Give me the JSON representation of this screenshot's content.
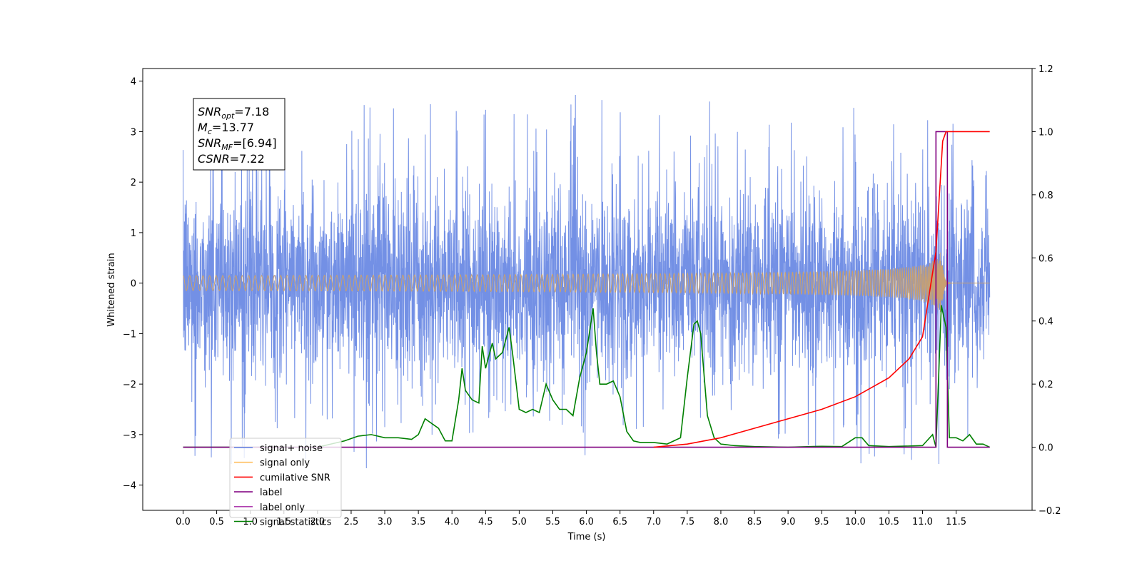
{
  "chart_data": {
    "type": "line",
    "xlabel": "Time (s)",
    "ylabel_left": "Whitened strain",
    "xlim": [
      -0.6,
      12.63
    ],
    "ylim_left": [
      -4.5,
      4.25
    ],
    "ylim_right": [
      -0.2,
      1.2
    ],
    "x_ticks": [
      0.0,
      0.5,
      1.0,
      1.5,
      2.0,
      2.5,
      3.0,
      3.5,
      4.0,
      4.5,
      5.0,
      5.5,
      6.0,
      6.5,
      7.0,
      7.5,
      8.0,
      8.5,
      9.0,
      9.5,
      10.0,
      10.5,
      11.0,
      11.5
    ],
    "x_tick_labels": [
      "0.0",
      "0.5",
      "1.0",
      "1.5",
      "2.0",
      "2.5",
      "3.0",
      "3.5",
      "4.0",
      "4.5",
      "5.0",
      "5.5",
      "6.0",
      "6.5",
      "7.0",
      "7.5",
      "8.0",
      "8.5",
      "9.0",
      "9.5",
      "10.0",
      "10.5",
      "11.0",
      "11.5"
    ],
    "y_left_ticks": [
      4,
      3,
      2,
      1,
      0,
      -1,
      -2,
      -3,
      -4
    ],
    "y_left_tick_labels": [
      "4",
      "3",
      "2",
      "1",
      "0",
      "−1",
      "−2",
      "−3",
      "−4"
    ],
    "y_right_ticks": [
      1.2,
      1.0,
      0.8,
      0.6,
      0.4,
      0.2,
      0.0,
      -0.2
    ],
    "y_right_tick_labels": [
      "1.2",
      "1.0",
      "0.8",
      "0.6",
      "0.4",
      "0.2",
      "0.0",
      "−0.2"
    ],
    "grid": false,
    "legend_position": "bottom-left",
    "annotation_box": {
      "lines": [
        {
          "main": "SNR",
          "sub": "opt",
          "value": "=7.18"
        },
        {
          "main": "M",
          "sub": "c",
          "value": "=13.77"
        },
        {
          "main": "SNR",
          "sub": "MF",
          "value": "=[6.94]"
        },
        {
          "main": "CSNR",
          "sub": "",
          "value": "=7.22"
        }
      ]
    },
    "series": [
      {
        "name": "signal+ noise",
        "axis": "left",
        "color": "#5b7de0",
        "style": "noise",
        "x_range": [
          0.0,
          12.0
        ],
        "typical_range": [
          -2.0,
          2.0
        ],
        "peak_max": 3.87,
        "peak_min": -4.1
      },
      {
        "name": "signal only",
        "axis": "left",
        "color": "#c8a070",
        "style": "chirp",
        "x_range": [
          0.0,
          12.0
        ],
        "merger_time": 11.3,
        "max_amplitude": 0.72
      },
      {
        "name": "cumilative SNR",
        "axis": "right",
        "color": "#ff0000",
        "x": [
          7.0,
          7.5,
          8.0,
          8.5,
          9.0,
          9.5,
          10.0,
          10.5,
          10.8,
          11.0,
          11.2,
          11.3,
          11.35,
          12.0
        ],
        "y": [
          0.0,
          0.01,
          0.03,
          0.06,
          0.09,
          0.12,
          0.16,
          0.22,
          0.28,
          0.35,
          0.62,
          0.97,
          1.0,
          1.0
        ]
      },
      {
        "name": "label",
        "axis": "right",
        "color": "#800080",
        "x": [
          0.0,
          11.2,
          11.2,
          11.37,
          11.37,
          12.0
        ],
        "y": [
          0.0,
          0.0,
          1.0,
          1.0,
          0.0,
          0.0
        ]
      },
      {
        "name": "label only",
        "axis": "right",
        "color": "#800080",
        "x": [],
        "y": []
      },
      {
        "name": "signal statistics",
        "axis": "right",
        "color": "#008000",
        "x": [
          0.0,
          2.0,
          2.2,
          2.4,
          2.6,
          2.8,
          3.0,
          3.2,
          3.4,
          3.5,
          3.6,
          3.8,
          3.9,
          4.0,
          4.1,
          4.15,
          4.2,
          4.3,
          4.4,
          4.45,
          4.5,
          4.6,
          4.65,
          4.75,
          4.85,
          4.9,
          5.0,
          5.1,
          5.2,
          5.3,
          5.4,
          5.5,
          5.6,
          5.7,
          5.8,
          5.9,
          6.0,
          6.1,
          6.15,
          6.2,
          6.3,
          6.4,
          6.5,
          6.6,
          6.7,
          6.8,
          6.9,
          7.0,
          7.2,
          7.4,
          7.5,
          7.6,
          7.65,
          7.7,
          7.8,
          7.9,
          8.0,
          8.2,
          8.5,
          9.0,
          9.5,
          9.8,
          10.0,
          10.1,
          10.2,
          10.5,
          11.0,
          11.15,
          11.2,
          11.28,
          11.35,
          11.4,
          11.5,
          11.6,
          11.7,
          11.8,
          11.9,
          12.0
        ],
        "y": [
          0.0,
          0.0,
          0.01,
          0.02,
          0.035,
          0.04,
          0.03,
          0.03,
          0.025,
          0.04,
          0.09,
          0.06,
          0.02,
          0.02,
          0.15,
          0.25,
          0.18,
          0.15,
          0.14,
          0.32,
          0.25,
          0.33,
          0.28,
          0.3,
          0.38,
          0.3,
          0.12,
          0.11,
          0.12,
          0.11,
          0.2,
          0.15,
          0.12,
          0.12,
          0.1,
          0.22,
          0.3,
          0.44,
          0.3,
          0.2,
          0.2,
          0.21,
          0.16,
          0.05,
          0.02,
          0.015,
          0.015,
          0.015,
          0.01,
          0.03,
          0.22,
          0.39,
          0.4,
          0.36,
          0.1,
          0.03,
          0.01,
          0.005,
          0.002,
          0.0,
          0.003,
          0.002,
          0.03,
          0.03,
          0.005,
          0.002,
          0.005,
          0.04,
          0.0,
          0.45,
          0.38,
          0.03,
          0.03,
          0.02,
          0.04,
          0.01,
          0.01,
          0.0
        ]
      }
    ]
  }
}
